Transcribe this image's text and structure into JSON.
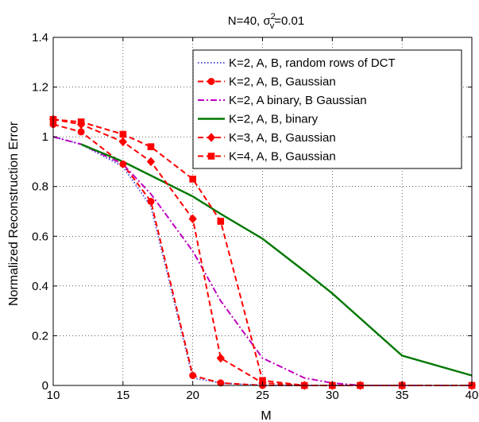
{
  "chart_data": {
    "type": "line",
    "title_parts": {
      "prefix": "N=40, σ",
      "sup": "2",
      "sub": "v",
      "suffix": "=0.01"
    },
    "xlabel": "M",
    "ylabel": "Normalized Reconstruction Error",
    "xlim": [
      10,
      40
    ],
    "ylim": [
      0,
      1.4
    ],
    "xticks": [
      10,
      15,
      20,
      25,
      30,
      35,
      40
    ],
    "yticks": [
      0,
      0.2,
      0.4,
      0.6,
      0.8,
      1,
      1.2,
      1.4
    ],
    "xtick_labels": [
      "10",
      "15",
      "20",
      "25",
      "30",
      "35",
      "40"
    ],
    "ytick_labels": [
      "0",
      "0.2",
      "0.4",
      "0.6",
      "0.8",
      "1",
      "1.2",
      "1.4"
    ],
    "grid": true,
    "legend_position": "top-right",
    "series": [
      {
        "name": "K=2, A, B, random rows of DCT",
        "color": "#5050e0",
        "dash": "dotted",
        "marker": "none",
        "x": [
          10,
          12,
          15,
          17,
          20,
          22,
          25,
          28,
          30,
          32,
          35,
          40
        ],
        "y": [
          1.0,
          0.97,
          0.88,
          0.72,
          0.03,
          0.01,
          0.0,
          0.0,
          0.0,
          0.0,
          0.0,
          0.0
        ]
      },
      {
        "name": "K=2, A, B, Gaussian",
        "color": "#ff0000",
        "dash": "dashed",
        "marker": "circle",
        "x": [
          10,
          12,
          15,
          17,
          20,
          22,
          25,
          28,
          30,
          32,
          35,
          40
        ],
        "y": [
          1.05,
          1.02,
          0.89,
          0.74,
          0.04,
          0.01,
          0.0,
          0.0,
          0.0,
          0.0,
          0.0,
          0.0
        ]
      },
      {
        "name": "K=2, A binary, B Gaussian",
        "color": "#c000c0",
        "dash": "dashdot",
        "marker": "none",
        "x": [
          10,
          12,
          15,
          17,
          20,
          22,
          25,
          28,
          30,
          32,
          35,
          40
        ],
        "y": [
          1.0,
          0.97,
          0.89,
          0.77,
          0.54,
          0.34,
          0.11,
          0.03,
          0.01,
          0.0,
          0.0,
          0.0
        ]
      },
      {
        "name": "K=2, A, B, binary",
        "color": "#007700",
        "dash": "solid",
        "marker": "none",
        "x": [
          12,
          15,
          20,
          22,
          25,
          28,
          30,
          35,
          40
        ],
        "y": [
          0.97,
          0.9,
          0.76,
          0.69,
          0.59,
          0.46,
          0.37,
          0.12,
          0.04
        ]
      },
      {
        "name": "K=3, A, B, Gaussian",
        "color": "#ff0000",
        "dash": "dashed",
        "marker": "diamond",
        "x": [
          10,
          12,
          15,
          17,
          20,
          22,
          25,
          28,
          30,
          32,
          35,
          40
        ],
        "y": [
          1.07,
          1.05,
          0.98,
          0.9,
          0.67,
          0.11,
          0.01,
          0.0,
          0.0,
          0.0,
          0.0,
          0.0
        ]
      },
      {
        "name": "K=4, A, B, Gaussian",
        "color": "#ff0000",
        "dash": "dashed",
        "marker": "square",
        "x": [
          10,
          12,
          15,
          17,
          20,
          22,
          25,
          28,
          30,
          32,
          35,
          40
        ],
        "y": [
          1.07,
          1.06,
          1.01,
          0.96,
          0.83,
          0.66,
          0.02,
          0.0,
          0.0,
          0.0,
          0.0,
          0.0
        ]
      }
    ]
  }
}
